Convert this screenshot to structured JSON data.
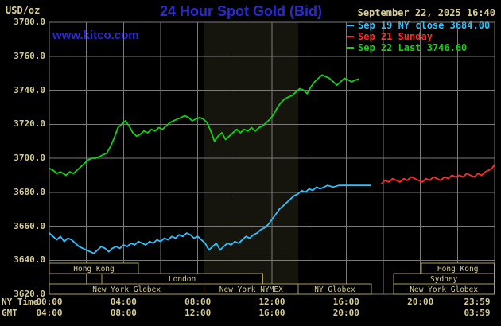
{
  "header": {
    "unit": "USD/oz",
    "title": "24 Hour Spot Gold (Bid)",
    "datetime": "September 22, 2025 16:40",
    "watermark": "www.kitco.com"
  },
  "legend": {
    "items": [
      {
        "text": "Sep 19 NY close 3684.00",
        "color": "#2fc1ff"
      },
      {
        "text": "Sep 21 Sunday",
        "color": "#ff2a2a"
      },
      {
        "text": "Sep 22 Last 3746.60",
        "color": "#12d112"
      }
    ]
  },
  "axes": {
    "ny_row_label": "NY Time",
    "gmt_row_label": "GMT"
  },
  "colors": {
    "background": "#000000",
    "grid": "#7a7a7a",
    "axis_text": "#d6cd96",
    "title_blue": "#2b2bcd",
    "session_border": "#ab9e5a",
    "nymex_band": "#15150d"
  },
  "chart_data": {
    "type": "line",
    "title": "24 Hour Spot Gold (Bid)",
    "ylabel": "USD/oz",
    "xlabel": "NY Time",
    "ylim": [
      3620,
      3780
    ],
    "xlim_hours": [
      0,
      24
    ],
    "grid": true,
    "yticks": [
      3780,
      3760,
      3740,
      3720,
      3700,
      3680,
      3660,
      3640,
      3620
    ],
    "xticks": [
      {
        "hour": 0,
        "ny": "00:00",
        "gmt": "04:00"
      },
      {
        "hour": 4,
        "ny": "04:00",
        "gmt": "08:00"
      },
      {
        "hour": 8,
        "ny": "08:00",
        "gmt": "12:00"
      },
      {
        "hour": 12,
        "ny": "12:00",
        "gmt": "16:00"
      },
      {
        "hour": 16,
        "ny": "16:00",
        "gmt": "20:00"
      },
      {
        "hour": 20,
        "ny": "20:00",
        "gmt": ""
      },
      {
        "hour": 23.98,
        "ny": "23:59",
        "gmt": "03:59"
      }
    ],
    "highlight_band": {
      "start_hour": 8.33,
      "end_hour": 13.42
    },
    "series": [
      {
        "id": "sep19",
        "name": "Sep 19 NY close",
        "close": 3684.0,
        "color": "#2fc1ff",
        "points": [
          [
            0,
            3656
          ],
          [
            0.2,
            3654
          ],
          [
            0.4,
            3652
          ],
          [
            0.6,
            3654
          ],
          [
            0.8,
            3651
          ],
          [
            1,
            3653
          ],
          [
            1.2,
            3652
          ],
          [
            1.4,
            3650
          ],
          [
            1.6,
            3648
          ],
          [
            1.8,
            3647
          ],
          [
            2,
            3646
          ],
          [
            2.2,
            3645
          ],
          [
            2.4,
            3644
          ],
          [
            2.6,
            3646
          ],
          [
            2.8,
            3648
          ],
          [
            3,
            3647
          ],
          [
            3.2,
            3645
          ],
          [
            3.4,
            3647
          ],
          [
            3.6,
            3648
          ],
          [
            3.8,
            3647
          ],
          [
            4,
            3649
          ],
          [
            4.2,
            3648
          ],
          [
            4.4,
            3650
          ],
          [
            4.6,
            3649
          ],
          [
            4.8,
            3651
          ],
          [
            5,
            3650
          ],
          [
            5.2,
            3649
          ],
          [
            5.4,
            3651
          ],
          [
            5.6,
            3650
          ],
          [
            5.8,
            3652
          ],
          [
            6,
            3651
          ],
          [
            6.2,
            3653
          ],
          [
            6.4,
            3652
          ],
          [
            6.6,
            3654
          ],
          [
            6.8,
            3653
          ],
          [
            7,
            3655
          ],
          [
            7.2,
            3654
          ],
          [
            7.4,
            3656
          ],
          [
            7.6,
            3655
          ],
          [
            7.8,
            3653
          ],
          [
            8,
            3654
          ],
          [
            8.2,
            3652
          ],
          [
            8.4,
            3650
          ],
          [
            8.6,
            3646
          ],
          [
            8.8,
            3648
          ],
          [
            9,
            3650
          ],
          [
            9.2,
            3646
          ],
          [
            9.4,
            3648
          ],
          [
            9.6,
            3650
          ],
          [
            9.8,
            3649
          ],
          [
            10,
            3651
          ],
          [
            10.2,
            3650
          ],
          [
            10.4,
            3652
          ],
          [
            10.6,
            3654
          ],
          [
            10.8,
            3653
          ],
          [
            11,
            3655
          ],
          [
            11.2,
            3656
          ],
          [
            11.4,
            3658
          ],
          [
            11.6,
            3659
          ],
          [
            11.8,
            3661
          ],
          [
            12,
            3664
          ],
          [
            12.2,
            3667
          ],
          [
            12.4,
            3670
          ],
          [
            12.6,
            3672
          ],
          [
            12.8,
            3674
          ],
          [
            13,
            3676
          ],
          [
            13.2,
            3678
          ],
          [
            13.4,
            3679
          ],
          [
            13.6,
            3681
          ],
          [
            13.8,
            3680
          ],
          [
            14,
            3682
          ],
          [
            14.2,
            3681
          ],
          [
            14.4,
            3683
          ],
          [
            14.6,
            3682
          ],
          [
            14.8,
            3683
          ],
          [
            15,
            3684
          ],
          [
            15.3,
            3683
          ],
          [
            15.6,
            3684
          ],
          [
            16,
            3684
          ],
          [
            16.5,
            3684
          ],
          [
            17,
            3684
          ],
          [
            17.3,
            3684
          ]
        ]
      },
      {
        "id": "sep21",
        "name": "Sep 21 Sunday",
        "color": "#ff2a2a",
        "points": [
          [
            17.9,
            3685
          ],
          [
            18.1,
            3687
          ],
          [
            18.3,
            3686
          ],
          [
            18.5,
            3688
          ],
          [
            18.7,
            3687
          ],
          [
            18.9,
            3686
          ],
          [
            19.1,
            3688
          ],
          [
            19.3,
            3687
          ],
          [
            19.5,
            3689
          ],
          [
            19.7,
            3688
          ],
          [
            19.9,
            3687
          ],
          [
            20.1,
            3686
          ],
          [
            20.3,
            3688
          ],
          [
            20.5,
            3687
          ],
          [
            20.7,
            3689
          ],
          [
            20.9,
            3688
          ],
          [
            21.1,
            3687
          ],
          [
            21.3,
            3689
          ],
          [
            21.5,
            3688
          ],
          [
            21.7,
            3690
          ],
          [
            21.9,
            3689
          ],
          [
            22.1,
            3690
          ],
          [
            22.3,
            3689
          ],
          [
            22.5,
            3691
          ],
          [
            22.7,
            3690
          ],
          [
            22.9,
            3689
          ],
          [
            23.1,
            3691
          ],
          [
            23.3,
            3690
          ],
          [
            23.5,
            3692
          ],
          [
            23.7,
            3693
          ],
          [
            23.85,
            3694
          ],
          [
            23.98,
            3696
          ]
        ]
      },
      {
        "id": "sep22",
        "name": "Sep 22",
        "last": 3746.6,
        "color": "#12d112",
        "points": [
          [
            0,
            3694
          ],
          [
            0.2,
            3693
          ],
          [
            0.4,
            3691
          ],
          [
            0.6,
            3692
          ],
          [
            0.9,
            3690
          ],
          [
            1.1,
            3692
          ],
          [
            1.3,
            3691
          ],
          [
            1.5,
            3693
          ],
          [
            1.7,
            3695
          ],
          [
            1.9,
            3697
          ],
          [
            2.1,
            3699
          ],
          [
            2.3,
            3700
          ],
          [
            2.5,
            3700
          ],
          [
            2.7,
            3701
          ],
          [
            2.9,
            3702
          ],
          [
            3.1,
            3703
          ],
          [
            3.3,
            3707
          ],
          [
            3.5,
            3712
          ],
          [
            3.7,
            3718
          ],
          [
            3.9,
            3720
          ],
          [
            4.1,
            3722
          ],
          [
            4.3,
            3719
          ],
          [
            4.5,
            3715
          ],
          [
            4.7,
            3713
          ],
          [
            4.9,
            3714
          ],
          [
            5.1,
            3716
          ],
          [
            5.3,
            3715
          ],
          [
            5.5,
            3717
          ],
          [
            5.7,
            3716
          ],
          [
            5.9,
            3718
          ],
          [
            6.1,
            3717
          ],
          [
            6.3,
            3719
          ],
          [
            6.5,
            3721
          ],
          [
            6.7,
            3722
          ],
          [
            6.9,
            3723
          ],
          [
            7.1,
            3724
          ],
          [
            7.3,
            3725
          ],
          [
            7.5,
            3724
          ],
          [
            7.7,
            3722
          ],
          [
            7.9,
            3723
          ],
          [
            8.1,
            3724
          ],
          [
            8.3,
            3723
          ],
          [
            8.5,
            3721
          ],
          [
            8.7,
            3716
          ],
          [
            8.9,
            3710
          ],
          [
            9.1,
            3713
          ],
          [
            9.3,
            3715
          ],
          [
            9.5,
            3711
          ],
          [
            9.7,
            3713
          ],
          [
            9.9,
            3715
          ],
          [
            10.1,
            3717
          ],
          [
            10.3,
            3715
          ],
          [
            10.5,
            3717
          ],
          [
            10.7,
            3716
          ],
          [
            10.9,
            3718
          ],
          [
            11.1,
            3716
          ],
          [
            11.3,
            3718
          ],
          [
            11.5,
            3719
          ],
          [
            11.7,
            3721
          ],
          [
            11.9,
            3723
          ],
          [
            12.1,
            3726
          ],
          [
            12.3,
            3730
          ],
          [
            12.5,
            3733
          ],
          [
            12.7,
            3735
          ],
          [
            12.9,
            3736
          ],
          [
            13.1,
            3737
          ],
          [
            13.3,
            3739
          ],
          [
            13.5,
            3741
          ],
          [
            13.7,
            3740
          ],
          [
            13.9,
            3738
          ],
          [
            14.1,
            3742
          ],
          [
            14.3,
            3745
          ],
          [
            14.5,
            3747
          ],
          [
            14.7,
            3749
          ],
          [
            14.9,
            3748
          ],
          [
            15.1,
            3747
          ],
          [
            15.3,
            3745
          ],
          [
            15.5,
            3743
          ],
          [
            15.7,
            3745
          ],
          [
            15.9,
            3747
          ],
          [
            16.1,
            3746
          ],
          [
            16.3,
            3745
          ],
          [
            16.5,
            3746
          ],
          [
            16.67,
            3746.6
          ]
        ]
      }
    ],
    "sessions": [
      {
        "row": 0,
        "label": "Hong Kong",
        "start_hour": 0,
        "end_hour": 4.8
      },
      {
        "row": 0,
        "label": "Hong Kong",
        "start_hour": 20.05,
        "end_hour": 23.98
      },
      {
        "row": 1,
        "label": "London",
        "start_hour": 2.82,
        "end_hour": 11.5
      },
      {
        "row": 1,
        "label": "Sydney",
        "start_hour": 18.55,
        "end_hour": 23.98
      },
      {
        "row": 2,
        "label": "New York Globex",
        "start_hour": 0,
        "end_hour": 8.33
      },
      {
        "row": 2,
        "label": "New York NYMEX",
        "start_hour": 8.33,
        "end_hour": 13.42
      },
      {
        "row": 2,
        "label": "NY Globex",
        "start_hour": 13.42,
        "end_hour": 17.35
      },
      {
        "row": 2,
        "label": "New York Globex",
        "start_hour": 18.55,
        "end_hour": 23.98
      }
    ]
  }
}
